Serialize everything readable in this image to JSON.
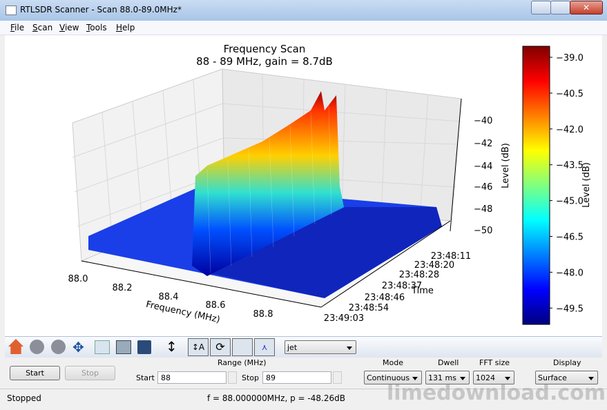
{
  "window": {
    "title": "RTLSDR Scanner - Scan 88.0-89.0MHz*"
  },
  "menu": [
    "File",
    "Scan",
    "View",
    "Tools",
    "Help"
  ],
  "plot": {
    "title": "Frequency Scan",
    "subtitle": "88 - 89 MHz, gain = 8.7dB",
    "x_label": "Frequency (MHz)",
    "y_label": "Time",
    "z_label": "Level (dB)",
    "x_ticks": [
      "88.0",
      "88.2",
      "88.4",
      "88.6",
      "88.8"
    ],
    "y_ticks": [
      "23:48:11",
      "23:48:20",
      "23:48:28",
      "23:48:37",
      "23:48:46",
      "23:48:54",
      "23:49:03"
    ],
    "z_ticks": [
      "−40",
      "−42",
      "−44",
      "−46",
      "−48",
      "−50"
    ],
    "colorbar": {
      "label": "Level (dB)",
      "ticks": [
        "−39.0",
        "−40.5",
        "−42.0",
        "−43.5",
        "−45.0",
        "−46.5",
        "−48.0",
        "−49.5"
      ]
    }
  },
  "toolbar": {
    "colormap": "jet"
  },
  "controls": {
    "start_button": "Start",
    "stop_button": "Stop",
    "range_label": "Range (MHz)",
    "start_label": "Start",
    "start_value": "88",
    "stop_label": "Stop",
    "stop_value": "89",
    "mode_label": "Mode",
    "mode_value": "Continuous",
    "dwell_label": "Dwell",
    "dwell_value": "131 ms",
    "fft_label": "FFT size",
    "fft_value": "1024",
    "display_label": "Display",
    "display_value": "Surface"
  },
  "status": {
    "state": "Stopped",
    "readout": "f = 88.000000MHz, p = -48.26dB"
  },
  "watermark": "limedownload.com"
}
